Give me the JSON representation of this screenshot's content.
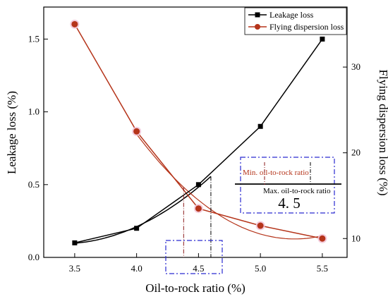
{
  "chart_data": {
    "type": "line",
    "xlabel": "Oil-to-rock ratio (%)",
    "ylabel_left": "Leakage loss (%)",
    "ylabel_right": "Flying dispersion loss (%)",
    "x_ticks": [
      "3.5",
      "4.0",
      "4.5",
      "5.0",
      "5.5"
    ],
    "y_left_ticks": [
      "0.0",
      "0.5",
      "1.0",
      "1.5"
    ],
    "y_right_ticks": [
      "10",
      "20",
      "30"
    ],
    "xlim": [
      3.25,
      5.7
    ],
    "ylim_left": [
      0,
      1.72
    ],
    "ylim_right": [
      7.8,
      37.0
    ],
    "series": [
      {
        "name": "Leakage loss",
        "axis": "left",
        "color": "#000000",
        "marker": "square",
        "x": [
          3.5,
          4.0,
          4.5,
          5.0,
          5.5
        ],
        "y": [
          0.1,
          0.2,
          0.5,
          0.9,
          1.5
        ]
      },
      {
        "name": "Flying dispersion loss",
        "axis": "right",
        "color": "#b5341a",
        "marker": "circle",
        "x": [
          3.5,
          4.0,
          4.5,
          5.0,
          5.5
        ],
        "y": [
          35,
          22.5,
          13.5,
          11.5,
          10
        ]
      }
    ],
    "fit_curve_black": {
      "x": [
        3.5,
        3.75,
        4.0,
        4.25,
        4.5,
        4.6
      ]
    },
    "fit_curve_red": {
      "x": [
        4.0,
        4.5,
        5.0,
        5.5
      ]
    },
    "annotations": {
      "min_label": "Min. oil-to-rock ratio",
      "max_label": "Max. oil-to-rock ratio",
      "value": "4. 5",
      "min_x": 4.38,
      "max_x": 4.6
    },
    "legend_position": "top-right"
  }
}
